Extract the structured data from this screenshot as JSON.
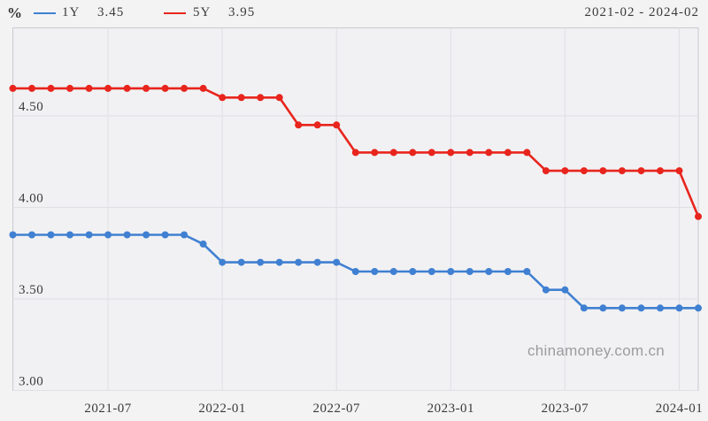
{
  "header": {
    "unit_label": "%",
    "date_range": "2021-02 - 2024-02",
    "legend": [
      {
        "label": "1Y",
        "value": "3.45"
      },
      {
        "label": "5Y",
        "value": "3.95"
      }
    ]
  },
  "watermark": "chinamoney.com.cn",
  "colors": {
    "series_1y": "#4080d2",
    "series_5y": "#e8251d",
    "grid": "#dfe0e4",
    "border": "#c9cad0",
    "text": "#3a3a3a",
    "plot_bg": "#f1f1f3",
    "page_bg": "#f3f3f4",
    "watermark": "#9c9c9e"
  },
  "chart_data": {
    "type": "line",
    "title": "",
    "xlabel": "",
    "ylabel": "%",
    "grid": true,
    "legend_position": "top",
    "ylim": [
      3.0,
      4.98
    ],
    "yticks": [
      "3.00",
      "3.50",
      "4.00",
      "4.50"
    ],
    "xticks": [
      "2021-07",
      "2022-01",
      "2022-07",
      "2023-01",
      "2023-07",
      "2024-01"
    ],
    "x": [
      "2021-02",
      "2021-03",
      "2021-04",
      "2021-05",
      "2021-06",
      "2021-07",
      "2021-08",
      "2021-09",
      "2021-10",
      "2021-11",
      "2021-12",
      "2022-01",
      "2022-02",
      "2022-03",
      "2022-04",
      "2022-05",
      "2022-06",
      "2022-07",
      "2022-08",
      "2022-09",
      "2022-10",
      "2022-11",
      "2022-12",
      "2023-01",
      "2023-02",
      "2023-03",
      "2023-04",
      "2023-05",
      "2023-06",
      "2023-07",
      "2023-08",
      "2023-09",
      "2023-10",
      "2023-11",
      "2023-12",
      "2024-01",
      "2024-02"
    ],
    "series": [
      {
        "name": "1Y",
        "color": "#4080d2",
        "values": [
          3.85,
          3.85,
          3.85,
          3.85,
          3.85,
          3.85,
          3.85,
          3.85,
          3.85,
          3.85,
          3.8,
          3.7,
          3.7,
          3.7,
          3.7,
          3.7,
          3.7,
          3.7,
          3.65,
          3.65,
          3.65,
          3.65,
          3.65,
          3.65,
          3.65,
          3.65,
          3.65,
          3.65,
          3.55,
          3.55,
          3.45,
          3.45,
          3.45,
          3.45,
          3.45,
          3.45,
          3.45
        ]
      },
      {
        "name": "5Y",
        "color": "#e8251d",
        "values": [
          4.65,
          4.65,
          4.65,
          4.65,
          4.65,
          4.65,
          4.65,
          4.65,
          4.65,
          4.65,
          4.65,
          4.6,
          4.6,
          4.6,
          4.6,
          4.45,
          4.45,
          4.45,
          4.3,
          4.3,
          4.3,
          4.3,
          4.3,
          4.3,
          4.3,
          4.3,
          4.3,
          4.3,
          4.2,
          4.2,
          4.2,
          4.2,
          4.2,
          4.2,
          4.2,
          4.2,
          3.95
        ]
      }
    ]
  }
}
